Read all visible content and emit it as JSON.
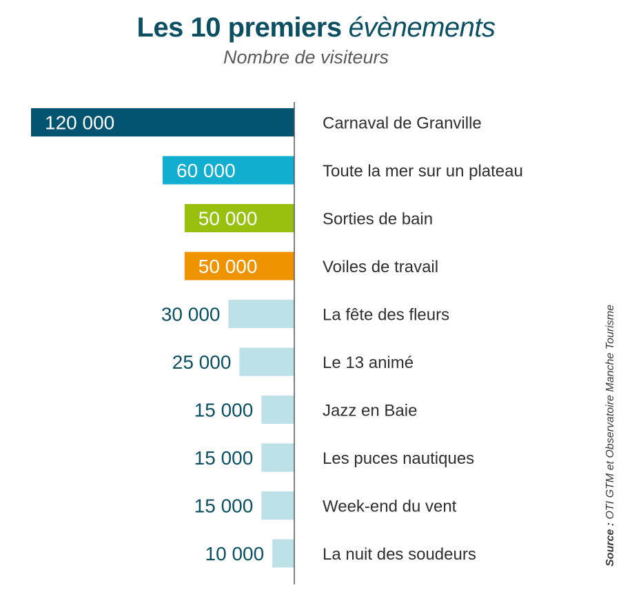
{
  "header": {
    "title_main": "Les 10 premiers",
    "title_emph": "évènements",
    "subtitle": "Nombre de visiteurs"
  },
  "source": {
    "label": "Source :",
    "text": "OTI GTM et Observatoire Manche Tourisme"
  },
  "chart_data": {
    "type": "bar",
    "orientation": "horizontal",
    "title": "Les 10 premiers évènements",
    "subtitle": "Nombre de visiteurs",
    "categories": [
      "Carnaval de Granville",
      "Toute la mer sur un plateau",
      "Sorties de bain",
      "Voiles de travail",
      "La fête des fleurs",
      "Le 13 animé",
      "Jazz en Baie",
      "Les puces nautiques",
      "Week-end du vent",
      "La nuit des soudeurs"
    ],
    "values": [
      120000,
      60000,
      50000,
      50000,
      30000,
      25000,
      15000,
      15000,
      15000,
      10000
    ],
    "value_labels": [
      "120 000",
      "60 000",
      "50 000",
      "50 000",
      "30 000",
      "25 000",
      "15 000",
      "15 000",
      "15 000",
      "10 000"
    ],
    "colors": [
      "#035470",
      "#12aed0",
      "#97c00f",
      "#ef9400",
      "#bce2e8",
      "#bce2e8",
      "#bce2e8",
      "#bce2e8",
      "#bce2e8",
      "#bce2e8"
    ],
    "value_label_inside_color": "#ffffff",
    "value_label_color": "#0b4f63",
    "category_label_color": "#2e2e2e",
    "axis_color": "#555555",
    "xlim": [
      0,
      120000
    ],
    "grid": false,
    "legend": "none"
  }
}
